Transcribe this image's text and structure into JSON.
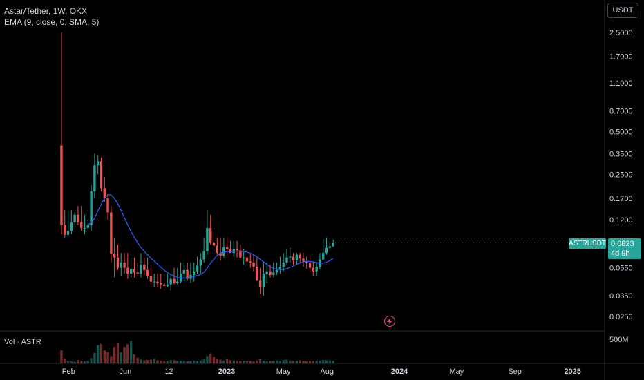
{
  "header": {
    "title": "Astar/Tether, 1W, OKX",
    "indicator": "EMA (9, close, 0, SMA, 5)",
    "volume_label": "Vol · ASTR",
    "currency": "USDT"
  },
  "price_badge": {
    "symbol": "ASTRUSDT",
    "price": "0.0823",
    "countdown": "4d 9h"
  },
  "colors": {
    "up": "#26a69a",
    "down": "#ef5350",
    "ema": "#2962ff",
    "background": "#000000",
    "axis_text": "#d1d4dc",
    "flash": "#e84e8a"
  },
  "icons": {
    "flash": "lightning-icon"
  },
  "chart_data": {
    "type": "candlestick",
    "scale": "log",
    "interval": "1W",
    "ylim": [
      0.02,
      3.2
    ],
    "y_ticks": [
      "2.5000",
      "1.7000",
      "1.1000",
      "0.7000",
      "0.5000",
      "0.3500",
      "0.2500",
      "0.1700",
      "0.1200",
      "0.0550",
      "0.0350",
      "0.0250"
    ],
    "x_ticks": [
      "Feb",
      "Jun",
      "12",
      "2023",
      "May",
      "Aug",
      "2024",
      "May",
      "Sep",
      "2025"
    ],
    "x_tick_dates": [
      "2022-02-01",
      "2022-06-01",
      "2022-09-01",
      "2023-01-01",
      "2023-05-01",
      "2023-08-01",
      "2024-01-01",
      "2024-05-01",
      "2024-09-01",
      "2025-01-01"
    ],
    "volume_ticks": [
      "500M"
    ],
    "volume_max": 700,
    "volume_unit": "M",
    "series": [
      {
        "name": "ASTR/USDT",
        "weeks_start": "2022-01-17",
        "o": [
          0.4,
          0.11,
          0.094,
          0.1,
          0.115,
          0.13,
          0.115,
          0.105,
          0.105,
          0.11,
          0.19,
          0.29,
          0.31,
          0.2,
          0.17,
          0.135,
          0.069,
          0.065,
          0.055,
          0.06,
          0.055,
          0.05,
          0.054,
          0.051,
          0.05,
          0.058,
          0.053,
          0.048,
          0.044,
          0.044,
          0.043,
          0.042,
          0.041,
          0.042,
          0.046,
          0.043,
          0.044,
          0.05,
          0.053,
          0.046,
          0.049,
          0.052,
          0.057,
          0.063,
          0.072,
          0.105,
          0.083,
          0.079,
          0.07,
          0.067,
          0.077,
          0.075,
          0.07,
          0.075,
          0.073,
          0.065,
          0.065,
          0.061,
          0.06,
          0.056,
          0.045,
          0.04,
          0.05,
          0.052,
          0.049,
          0.051,
          0.053,
          0.056,
          0.06,
          0.065,
          0.066,
          0.062,
          0.068,
          0.064,
          0.061,
          0.06,
          0.055,
          0.052,
          0.056,
          0.063,
          0.07,
          0.076,
          0.078
        ],
        "h": [
          2.5,
          0.14,
          0.14,
          0.14,
          0.135,
          0.15,
          0.15,
          0.13,
          0.12,
          0.21,
          0.35,
          0.34,
          0.33,
          0.24,
          0.18,
          0.15,
          0.09,
          0.08,
          0.07,
          0.07,
          0.07,
          0.065,
          0.065,
          0.06,
          0.07,
          0.065,
          0.065,
          0.055,
          0.05,
          0.05,
          0.05,
          0.05,
          0.05,
          0.05,
          0.055,
          0.055,
          0.06,
          0.06,
          0.06,
          0.06,
          0.06,
          0.066,
          0.07,
          0.09,
          0.14,
          0.13,
          0.1,
          0.09,
          0.09,
          0.09,
          0.09,
          0.085,
          0.085,
          0.085,
          0.08,
          0.075,
          0.07,
          0.07,
          0.068,
          0.065,
          0.055,
          0.06,
          0.06,
          0.058,
          0.06,
          0.06,
          0.066,
          0.07,
          0.075,
          0.076,
          0.07,
          0.07,
          0.07,
          0.07,
          0.066,
          0.065,
          0.06,
          0.06,
          0.07,
          0.088,
          0.09,
          0.085,
          0.087
        ],
        "l": [
          0.095,
          0.09,
          0.09,
          0.095,
          0.11,
          0.11,
          0.1,
          0.095,
          0.1,
          0.1,
          0.17,
          0.25,
          0.19,
          0.16,
          0.12,
          0.06,
          0.047,
          0.053,
          0.048,
          0.05,
          0.046,
          0.047,
          0.047,
          0.048,
          0.047,
          0.049,
          0.046,
          0.042,
          0.04,
          0.04,
          0.039,
          0.038,
          0.04,
          0.038,
          0.042,
          0.042,
          0.043,
          0.044,
          0.045,
          0.043,
          0.044,
          0.05,
          0.05,
          0.06,
          0.068,
          0.08,
          0.072,
          0.068,
          0.062,
          0.065,
          0.068,
          0.07,
          0.066,
          0.065,
          0.064,
          0.058,
          0.056,
          0.055,
          0.052,
          0.045,
          0.036,
          0.035,
          0.043,
          0.047,
          0.047,
          0.049,
          0.05,
          0.052,
          0.058,
          0.06,
          0.058,
          0.058,
          0.06,
          0.056,
          0.054,
          0.052,
          0.048,
          0.048,
          0.054,
          0.062,
          0.068,
          0.075,
          0.077
        ],
        "c": [
          0.11,
          0.094,
          0.1,
          0.115,
          0.13,
          0.115,
          0.105,
          0.105,
          0.11,
          0.19,
          0.29,
          0.31,
          0.2,
          0.17,
          0.135,
          0.069,
          0.065,
          0.055,
          0.06,
          0.055,
          0.05,
          0.054,
          0.051,
          0.05,
          0.058,
          0.053,
          0.048,
          0.044,
          0.044,
          0.043,
          0.042,
          0.041,
          0.042,
          0.046,
          0.043,
          0.044,
          0.05,
          0.053,
          0.046,
          0.049,
          0.052,
          0.057,
          0.063,
          0.072,
          0.105,
          0.083,
          0.079,
          0.07,
          0.067,
          0.077,
          0.075,
          0.07,
          0.075,
          0.073,
          0.065,
          0.065,
          0.061,
          0.06,
          0.056,
          0.045,
          0.04,
          0.05,
          0.052,
          0.049,
          0.051,
          0.053,
          0.056,
          0.06,
          0.065,
          0.066,
          0.062,
          0.068,
          0.064,
          0.061,
          0.06,
          0.055,
          0.052,
          0.056,
          0.063,
          0.07,
          0.076,
          0.078,
          0.0823
        ],
        "volume_M": [
          300,
          110,
          50,
          45,
          40,
          80,
          55,
          50,
          60,
          120,
          240,
          420,
          450,
          300,
          260,
          170,
          380,
          480,
          260,
          380,
          440,
          520,
          210,
          130,
          90,
          70,
          80,
          85,
          110,
          75,
          65,
          55,
          60,
          80,
          75,
          60,
          65,
          60,
          50,
          55,
          70,
          60,
          70,
          90,
          170,
          230,
          150,
          100,
          85,
          70,
          95,
          75,
          70,
          65,
          60,
          55,
          50,
          55,
          45,
          70,
          95,
          65,
          55,
          60,
          65,
          70,
          60,
          75,
          85,
          70,
          60,
          65,
          75,
          60,
          50,
          55,
          60,
          65,
          70,
          80,
          75,
          70,
          65
        ]
      },
      {
        "name": "EMA (9, close, 0, SMA, 5)"
      }
    ]
  }
}
